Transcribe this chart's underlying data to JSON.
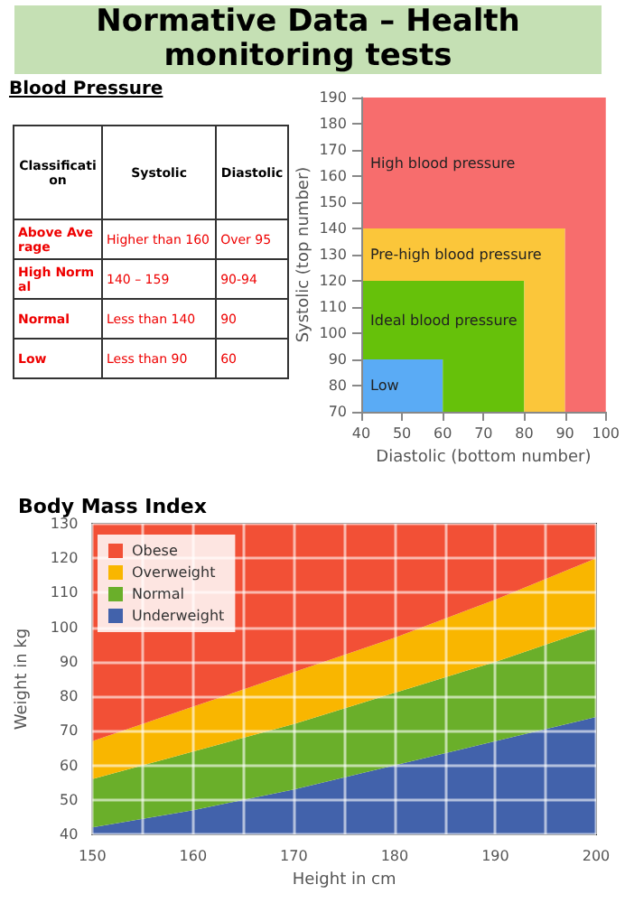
{
  "chart_data": [
    {
      "type": "other",
      "title": "Normative Data – Health monitoring tests",
      "subtitle": "Blood Pressure",
      "annotations": [
        "Classification",
        "Systolic",
        "Diastolic",
        "Above Average",
        "Higher than 160",
        "Over 95",
        "High Normal",
        "140 – 159",
        "90-94",
        "Normal",
        "Less than 140",
        "90",
        "Low",
        "Less than 90",
        "60"
      ]
    },
    {
      "type": "area",
      "xlabel": "Diastolic (bottom number)",
      "ylabel": "Systolic (top number)",
      "x": [
        40,
        60,
        60,
        80,
        80,
        90,
        90,
        100
      ],
      "xlim": [
        40,
        100
      ],
      "ylim": [
        70,
        190
      ],
      "xticks": [
        40,
        50,
        60,
        70,
        80,
        90,
        100
      ],
      "yticks": [
        70,
        80,
        90,
        100,
        110,
        120,
        130,
        140,
        150,
        160,
        170,
        180,
        190
      ],
      "grid": false,
      "legend": false,
      "series": [
        {
          "name": "Low",
          "color": "#5aabf5",
          "values": [
            90,
            90,
            70,
            70,
            70,
            70,
            70,
            70
          ]
        },
        {
          "name": "Ideal blood pressure",
          "color": "#66c10a",
          "values": [
            120,
            120,
            120,
            120,
            70,
            70,
            70,
            70
          ]
        },
        {
          "name": "Pre-high blood pressure",
          "color": "#fbc63a",
          "values": [
            140,
            140,
            140,
            140,
            140,
            140,
            70,
            70
          ]
        },
        {
          "name": "High blood pressure",
          "color": "#f76d6d",
          "values": [
            190,
            190,
            190,
            190,
            190,
            190,
            190,
            190
          ]
        }
      ]
    },
    {
      "type": "area",
      "title": "Body Mass Index",
      "xlabel": "Height in cm",
      "ylabel": "Weight in kg",
      "x": [
        150,
        160,
        170,
        180,
        190,
        200
      ],
      "xlim": [
        150,
        200
      ],
      "ylim": [
        40,
        130
      ],
      "xticks": [
        150,
        {
          "value": 155,
          "label": null
        },
        160,
        {
          "value": 165,
          "label": null
        },
        170,
        {
          "value": 175,
          "label": null
        },
        180,
        {
          "value": 185,
          "label": null
        },
        190,
        {
          "value": 195,
          "label": null
        },
        200
      ],
      "yticks": [
        40,
        50,
        60,
        70,
        80,
        90,
        100,
        110,
        120,
        130
      ],
      "grid": true,
      "legend": "top left",
      "series": [
        {
          "name": "Underweight",
          "color": "#4262ab",
          "values": [
            42,
            47,
            53,
            60,
            67,
            74
          ]
        },
        {
          "name": "Normal",
          "color": "#6aaf2a",
          "values": [
            56,
            64,
            72,
            81,
            90,
            100
          ]
        },
        {
          "name": "Overweight",
          "color": "#f9b600",
          "values": [
            67,
            77,
            87,
            97,
            108,
            120
          ]
        },
        {
          "name": "Obese",
          "color": "#f25036",
          "values": [
            130,
            130,
            130,
            130,
            130,
            130
          ]
        }
      ]
    }
  ]
}
